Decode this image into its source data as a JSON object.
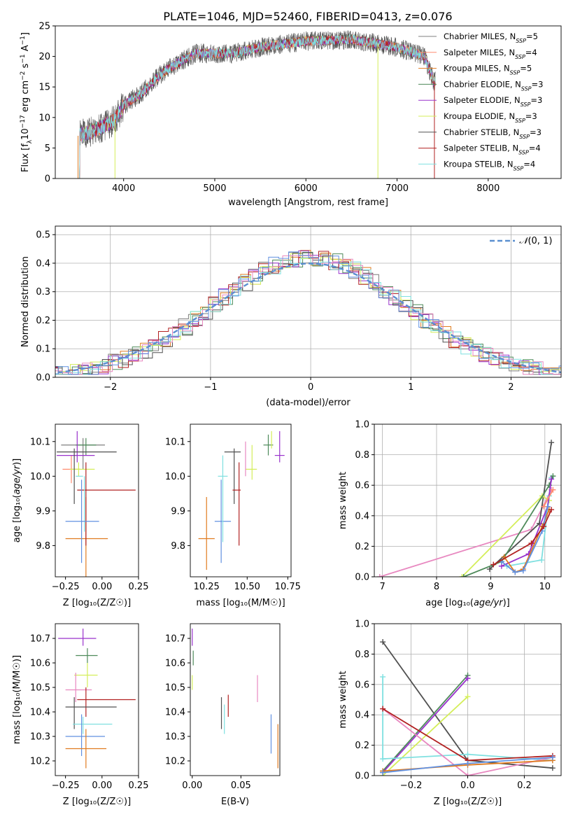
{
  "title": "PLATE=1046, MJD=52460, FIBERID=0413, z=0.076",
  "colors": {
    "Chabrier MILES": "#7f7f7f",
    "Salpeter MILES": "#ff8c70",
    "Kroupa MILES": "#e07b20",
    "Chabrier ELODIE": "#4e8a5a",
    "Salpeter ELODIE": "#9932cc",
    "Kroupa ELODIE": "#d4ee5a",
    "Chabrier STELIB": "#505050",
    "Salpeter STELIB": "#b22222",
    "Kroupa STELIB": "#7fe0e0",
    "histextra1": "#e888c0",
    "histextra2": "#6090e0",
    "normal": "#5b8fd0"
  },
  "legend": [
    {
      "name": "Chabrier MILES",
      "nssp": "5"
    },
    {
      "name": "Salpeter MILES",
      "nssp": "4"
    },
    {
      "name": "Kroupa MILES",
      "nssp": "5"
    },
    {
      "name": "Chabrier ELODIE",
      "nssp": "3"
    },
    {
      "name": "Salpeter ELODIE",
      "nssp": "3"
    },
    {
      "name": "Kroupa ELODIE",
      "nssp": "3"
    },
    {
      "name": "Chabrier STELIB",
      "nssp": "3"
    },
    {
      "name": "Salpeter STELIB",
      "nssp": "4"
    },
    {
      "name": "Kroupa STELIB",
      "nssp": "4"
    }
  ],
  "chart_data": [
    {
      "type": "line",
      "panel": "spectrum",
      "xlabel": "wavelength [Angstrom, rest frame]",
      "ylabel": "Flux [f",
      "xlim": [
        3250,
        8800
      ],
      "ylim": [
        0,
        25
      ],
      "xticks": [
        4000,
        5000,
        6000,
        7000,
        8000
      ],
      "yticks": [
        0,
        5,
        10,
        15,
        20,
        25
      ],
      "continuum": {
        "x": [
          3500,
          3700,
          3900,
          4000,
          4200,
          4400,
          4600,
          4800,
          5000,
          5200,
          5500,
          6000,
          6500,
          7000,
          7300,
          7400
        ],
        "y": [
          7,
          8,
          9.5,
          12,
          14,
          17,
          19,
          20.5,
          20.5,
          20.5,
          21.5,
          22.5,
          22.8,
          21.5,
          20,
          16
        ]
      }
    },
    {
      "type": "line",
      "panel": "residual-histogram",
      "xlabel": "(data-model)/error",
      "ylabel": "Normed distribution",
      "xlim": [
        -2.55,
        2.5
      ],
      "ylim": [
        0,
        0.53
      ],
      "xticks": [
        -2,
        -1,
        0,
        1,
        2
      ],
      "yticks": [
        0.0,
        0.1,
        0.2,
        0.3,
        0.4,
        0.5
      ],
      "legend": "N(0,1)",
      "binwidth": 0.1
    },
    {
      "type": "scatter",
      "panel": "age-vs-Z",
      "xlabel": "Z [log10(Z/Zsun)]",
      "ylabel": "age [log10(age/yr)]",
      "xlim": [
        -0.32,
        0.25
      ],
      "ylim": [
        9.71,
        10.15
      ],
      "xticks": [
        -0.25,
        0.0,
        0.25
      ],
      "xticklabels": [
        "−0.25",
        "0.00",
        "0.25"
      ],
      "yticks": [
        9.8,
        9.9,
        10.0,
        10.1
      ],
      "points": [
        {
          "c": "Chabrier MILES",
          "x": -0.13,
          "y": 10.09,
          "ex": [
            -0.28,
            0.02
          ],
          "ey": [
            10.02,
            10.11
          ]
        },
        {
          "c": "Salpeter MILES",
          "x": -0.21,
          "y": 10.02,
          "ex": [
            -0.27,
            -0.15
          ],
          "ey": [
            9.98,
            10.06
          ]
        },
        {
          "c": "Kroupa MILES",
          "x": -0.11,
          "y": 9.82,
          "ex": [
            -0.25,
            0.04
          ],
          "ey": [
            9.71,
            9.94
          ]
        },
        {
          "c": "Chabrier ELODIE",
          "x": -0.11,
          "y": 10.09,
          "ex": [
            -0.18,
            -0.04
          ],
          "ey": [
            10.06,
            10.11
          ]
        },
        {
          "c": "Salpeter ELODIE",
          "x": -0.17,
          "y": 10.06,
          "ex": [
            -0.31,
            -0.05
          ],
          "ey": [
            10.04,
            10.13
          ]
        },
        {
          "c": "Kroupa ELODIE",
          "x": -0.16,
          "y": 10.02,
          "ex": [
            -0.22,
            -0.05
          ],
          "ey": [
            10.0,
            10.04
          ]
        },
        {
          "c": "Chabrier STELIB",
          "x": -0.19,
          "y": 10.07,
          "ex": [
            -0.31,
            0.1
          ],
          "ey": [
            9.92,
            10.08
          ]
        },
        {
          "c": "Salpeter STELIB",
          "x": -0.11,
          "y": 9.96,
          "ex": [
            -0.17,
            0.23
          ],
          "ey": [
            9.8,
            10.04
          ]
        },
        {
          "c": "Kroupa STELIB",
          "x": -0.12,
          "y": 10.0,
          "ex": [
            -0.18,
            -0.13
          ],
          "ey": [
            9.84,
            10.0
          ]
        },
        {
          "c": "histextra2",
          "x": -0.14,
          "y": 9.87,
          "ex": [
            -0.25,
            -0.02
          ],
          "ey": [
            9.75,
            9.99
          ]
        }
      ]
    },
    {
      "type": "scatter",
      "panel": "age-vs-mass",
      "xlabel": "mass [log10(M/Msun)]",
      "xlim": [
        10.15,
        10.77
      ],
      "ylim": [
        9.71,
        10.15
      ],
      "xticks": [
        10.25,
        10.5,
        10.75
      ],
      "xticklabels": [
        "10.25",
        "10.50",
        "10.75"
      ],
      "yticks": [
        9.8,
        9.9,
        10.0,
        10.1
      ],
      "points": [
        {
          "c": "Kroupa MILES",
          "x": 10.25,
          "y": 9.82,
          "ex": [
            10.2,
            10.3
          ],
          "ey": [
            9.73,
            9.94
          ]
        },
        {
          "c": "histextra2",
          "x": 10.34,
          "y": 9.87,
          "ex": [
            10.3,
            10.4
          ],
          "ey": [
            9.75,
            9.99
          ]
        },
        {
          "c": "Kroupa STELIB",
          "x": 10.35,
          "y": 10.0,
          "ex": [
            10.32,
            10.38
          ],
          "ey": [
            9.81,
            10.06
          ]
        },
        {
          "c": "Chabrier STELIB",
          "x": 10.42,
          "y": 10.07,
          "ex": [
            10.36,
            10.46
          ],
          "ey": [
            9.92,
            10.08
          ]
        },
        {
          "c": "Salpeter STELIB",
          "x": 10.45,
          "y": 9.96,
          "ex": [
            10.41,
            10.46
          ],
          "ey": [
            9.8,
            10.04
          ]
        },
        {
          "c": "Kroupa ELODIE",
          "x": 10.53,
          "y": 10.02,
          "ex": [
            10.49,
            10.56
          ],
          "ey": [
            9.99,
            10.09
          ]
        },
        {
          "c": "histextra1",
          "x": 10.49,
          "y": 10.06,
          "ex": [
            10.49,
            10.49
          ],
          "ey": [
            10.0,
            10.1
          ]
        },
        {
          "c": "Chabrier ELODIE",
          "x": 10.63,
          "y": 10.09,
          "ex": [
            10.6,
            10.66
          ],
          "ey": [
            10.06,
            10.12
          ]
        },
        {
          "c": "Salpeter ELODIE",
          "x": 10.7,
          "y": 10.06,
          "ex": [
            10.67,
            10.73
          ],
          "ey": [
            10.04,
            10.13
          ]
        },
        {
          "c": "Kroupa ELODIE",
          "x": 10.65,
          "y": 10.1,
          "ex": [
            10.65,
            10.65
          ],
          "ey": [
            10.08,
            10.13
          ]
        }
      ]
    },
    {
      "type": "line",
      "panel": "weight-vs-age",
      "xlabel": "age [log10(age/yr)]",
      "ylabel": "mass weight",
      "xlim": [
        6.85,
        10.3
      ],
      "ylim": [
        0,
        1.0
      ],
      "xticks": [
        7,
        8,
        9,
        10
      ],
      "yticks": [
        0.0,
        0.2,
        0.4,
        0.6,
        0.8,
        1.0
      ],
      "series": [
        {
          "c": "histextra1",
          "x": [
            6.95,
            9.75,
            10.12
          ],
          "y": [
            0.0,
            0.31,
            0.57
          ]
        },
        {
          "c": "Chabrier STELIB",
          "x": [
            8.98,
            9.9,
            10.12
          ],
          "y": [
            0.05,
            0.35,
            0.88
          ]
        },
        {
          "c": "Kroupa ELODIE",
          "x": [
            8.47,
            9.95,
            10.08
          ],
          "y": [
            0.0,
            0.53,
            0.5
          ]
        },
        {
          "c": "Kroupa STELIB",
          "x": [
            9.3,
            9.94,
            10.08,
            10.12
          ],
          "y": [
            0.07,
            0.11,
            0.53,
            0.65
          ]
        },
        {
          "c": "Chabrier ELODIE",
          "x": [
            8.5,
            9.2,
            10.08,
            10.15
          ],
          "y": [
            0.0,
            0.1,
            0.6,
            0.66
          ]
        },
        {
          "c": "Salpeter ELODIE",
          "x": [
            9.2,
            9.7,
            10.05,
            10.12
          ],
          "y": [
            0.07,
            0.15,
            0.46,
            0.64
          ]
        },
        {
          "c": "Kroupa MILES",
          "x": [
            9.25,
            9.45,
            9.6,
            9.95,
            10.08
          ],
          "y": [
            0.13,
            0.03,
            0.05,
            0.33,
            0.44
          ]
        },
        {
          "c": "histextra2",
          "x": [
            9.2,
            9.45,
            9.6,
            9.95,
            10.05
          ],
          "y": [
            0.1,
            0.03,
            0.04,
            0.3,
            0.46
          ]
        },
        {
          "c": "Salpeter STELIB",
          "x": [
            9.05,
            9.75,
            9.98,
            10.12
          ],
          "y": [
            0.08,
            0.22,
            0.33,
            0.44
          ]
        },
        {
          "c": "Salpeter MILES",
          "x": [
            9.98,
            10.15
          ],
          "y": [
            0.46,
            0.57
          ]
        }
      ]
    },
    {
      "type": "scatter",
      "panel": "mass-vs-Z",
      "xlabel": "Z [log10(Z/Zsun)]",
      "ylabel": "mass [log10(M/Msun)]",
      "xlim": [
        -0.32,
        0.25
      ],
      "ylim": [
        10.14,
        10.76
      ],
      "xticks": [
        -0.25,
        0.0,
        0.25
      ],
      "xticklabels": [
        "−0.25",
        "0.00",
        "0.25"
      ],
      "yticks": [
        10.2,
        10.3,
        10.4,
        10.5,
        10.6,
        10.7
      ],
      "points": [
        {
          "c": "Salpeter ELODIE",
          "x": -0.13,
          "y": 10.7,
          "ex": [
            -0.3,
            -0.04
          ],
          "ey": [
            10.67,
            10.74
          ]
        },
        {
          "c": "Chabrier ELODIE",
          "x": -0.1,
          "y": 10.63,
          "ex": [
            -0.18,
            -0.03
          ],
          "ey": [
            10.6,
            10.66
          ]
        },
        {
          "c": "Kroupa ELODIE",
          "x": -0.1,
          "y": 10.55,
          "ex": [
            -0.19,
            -0.03
          ],
          "ey": [
            10.5,
            10.6
          ]
        },
        {
          "c": "histextra1",
          "x": -0.18,
          "y": 10.49,
          "ex": [
            -0.25,
            -0.07
          ],
          "ey": [
            10.44,
            10.56
          ]
        },
        {
          "c": "Salpeter STELIB",
          "x": -0.11,
          "y": 10.45,
          "ex": [
            -0.17,
            0.23
          ],
          "ey": [
            10.38,
            10.5
          ]
        },
        {
          "c": "Chabrier STELIB",
          "x": -0.19,
          "y": 10.42,
          "ex": [
            -0.25,
            0.1
          ],
          "ey": [
            10.33,
            10.46
          ]
        },
        {
          "c": "Kroupa STELIB",
          "x": -0.13,
          "y": 10.35,
          "ex": [
            -0.2,
            0.07
          ],
          "ey": [
            10.31,
            10.38
          ]
        },
        {
          "c": "histextra2",
          "x": -0.14,
          "y": 10.3,
          "ex": [
            -0.25,
            0.02
          ],
          "ey": [
            10.22,
            10.39
          ]
        },
        {
          "c": "Kroupa MILES",
          "x": -0.11,
          "y": 10.25,
          "ex": [
            -0.25,
            0.03
          ],
          "ey": [
            10.17,
            10.33
          ]
        }
      ]
    },
    {
      "type": "scatter",
      "panel": "mass-vs-EBV",
      "xlabel": "E(B-V)",
      "xlim": [
        -0.002,
        0.09
      ],
      "ylim": [
        10.14,
        10.76
      ],
      "xticks": [
        0.0,
        0.05
      ],
      "xticklabels": [
        "0.00",
        "0.05"
      ],
      "yticks": [
        10.2,
        10.3,
        10.4,
        10.5,
        10.6,
        10.7
      ],
      "points": [
        {
          "c": "Salpeter ELODIE",
          "x": 0.0,
          "y": 10.7,
          "ey": [
            10.67,
            10.74
          ]
        },
        {
          "c": "Chabrier ELODIE",
          "x": 0.001,
          "y": 10.62,
          "ey": [
            10.59,
            10.65
          ]
        },
        {
          "c": "Kroupa ELODIE",
          "x": 0.0,
          "y": 10.52,
          "ey": [
            10.49,
            10.55
          ]
        },
        {
          "c": "histextra1",
          "x": 0.067,
          "y": 10.48,
          "ey": [
            10.44,
            10.55
          ]
        },
        {
          "c": "Salpeter STELIB",
          "x": 0.037,
          "y": 10.42,
          "ey": [
            10.38,
            10.47
          ]
        },
        {
          "c": "Chabrier STELIB",
          "x": 0.03,
          "y": 10.4,
          "ey": [
            10.33,
            10.46
          ]
        },
        {
          "c": "Kroupa STELIB",
          "x": 0.033,
          "y": 10.37,
          "ey": [
            10.31,
            10.43
          ]
        },
        {
          "c": "histextra2",
          "x": 0.081,
          "y": 10.31,
          "ey": [
            10.23,
            10.39
          ]
        },
        {
          "c": "Kroupa MILES",
          "x": 0.088,
          "y": 10.26,
          "ey": [
            10.17,
            10.35
          ]
        }
      ]
    },
    {
      "type": "line",
      "panel": "weight-vs-Z",
      "xlabel": "Z [log10(Z/Zsun)]",
      "ylabel": "mass weight",
      "xlim": [
        -0.33,
        0.33
      ],
      "ylim": [
        0,
        1.0
      ],
      "xticks": [
        -0.2,
        0.0,
        0.2
      ],
      "xticklabels": [
        "−0.2",
        "0.0",
        "0.2"
      ],
      "yticks": [
        0.0,
        0.2,
        0.4,
        0.6,
        0.8,
        1.0
      ],
      "series": [
        {
          "c": "Chabrier STELIB",
          "x": [
            -0.3,
            0.0,
            0.3
          ],
          "y": [
            0.88,
            0.1,
            0.05
          ]
        },
        {
          "c": "Chabrier ELODIE",
          "x": [
            -0.3,
            0.0
          ],
          "y": [
            0.03,
            0.66
          ]
        },
        {
          "c": "Salpeter ELODIE",
          "x": [
            -0.3,
            0.0
          ],
          "y": [
            0.02,
            0.64
          ]
        },
        {
          "c": "Kroupa ELODIE",
          "x": [
            -0.3,
            0.0
          ],
          "y": [
            0.0,
            0.52
          ]
        },
        {
          "c": "Kroupa STELIB",
          "x": [
            -0.3,
            -0.3,
            0.0,
            0.3
          ],
          "y": [
            0.65,
            0.11,
            0.14,
            0.1
          ]
        },
        {
          "c": "histextra1",
          "x": [
            -0.3,
            0.0,
            0.3
          ],
          "y": [
            0.44,
            0.0,
            0.12
          ]
        },
        {
          "c": "Salpeter STELIB",
          "x": [
            -0.3,
            0.0,
            0.3
          ],
          "y": [
            0.44,
            0.1,
            0.13
          ]
        },
        {
          "c": "Kroupa MILES",
          "x": [
            -0.3,
            0.0,
            0.3
          ],
          "y": [
            0.03,
            0.07,
            0.1
          ]
        },
        {
          "c": "histextra2",
          "x": [
            -0.3,
            0.0,
            0.3
          ],
          "y": [
            0.02,
            0.08,
            0.12
          ]
        }
      ]
    }
  ]
}
